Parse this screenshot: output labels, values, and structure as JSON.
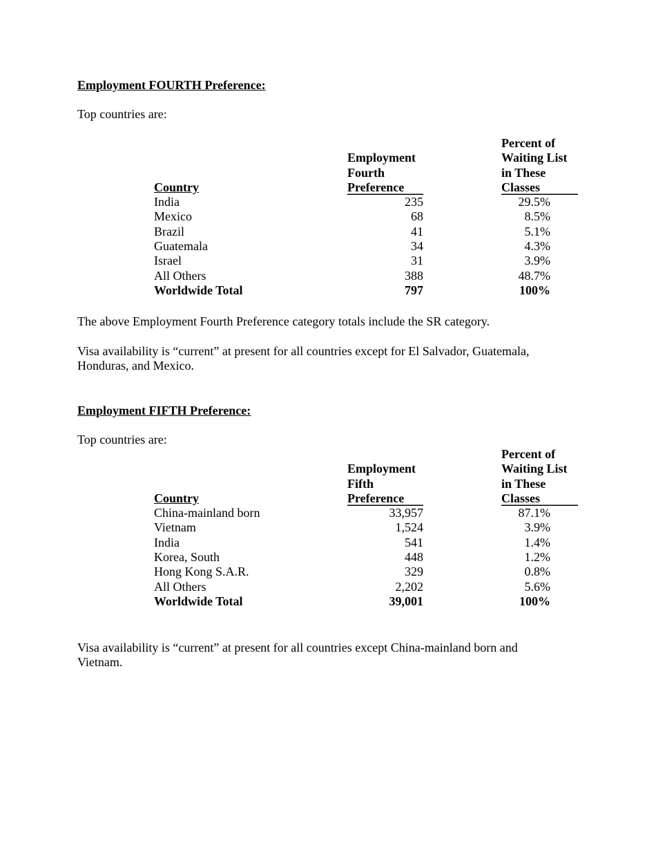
{
  "fourth": {
    "heading": "Employment FOURTH Preference:",
    "intro": "Top countries are:",
    "columns": {
      "country": "Country",
      "pref": [
        "Employment",
        "Fourth",
        "Preference"
      ],
      "percent": [
        "Percent of",
        "Waiting List",
        "in These",
        "Classes"
      ]
    },
    "rows": [
      {
        "country": "India",
        "count": "235",
        "percent": "29.5%"
      },
      {
        "country": "Mexico",
        "count": "68",
        "percent": "8.5%"
      },
      {
        "country": "Brazil",
        "count": "41",
        "percent": "5.1%"
      },
      {
        "country": "Guatemala",
        "count": "34",
        "percent": "4.3%"
      },
      {
        "country": "Israel",
        "count": "31",
        "percent": "3.9%"
      },
      {
        "country": "All Others",
        "count": "388",
        "percent": "48.7%"
      }
    ],
    "total": {
      "country": "Worldwide Total",
      "count": "797",
      "percent": "100%"
    },
    "note1": "The above Employment Fourth Preference category totals include the SR category.",
    "note2": "Visa availability is “current” at present for all countries except for El Salvador, Guatemala, Honduras, and Mexico."
  },
  "fifth": {
    "heading": "Employment FIFTH Preference:",
    "intro": "Top countries are:",
    "columns": {
      "country": "Country",
      "pref": [
        "Employment",
        "Fifth",
        "Preference"
      ],
      "percent": [
        "Percent of",
        "Waiting List",
        "in These",
        "Classes"
      ]
    },
    "rows": [
      {
        "country": "China-mainland born",
        "count": "33,957",
        "percent": "87.1%"
      },
      {
        "country": "Vietnam",
        "count": "1,524",
        "percent": "3.9%"
      },
      {
        "country": "India",
        "count": "541",
        "percent": "1.4%"
      },
      {
        "country": "Korea, South",
        "count": "448",
        "percent": "1.2%"
      },
      {
        "country": "Hong Kong S.A.R.",
        "count": "329",
        "percent": "0.8%"
      },
      {
        "country": "All Others",
        "count": "2,202",
        "percent": "5.6%"
      }
    ],
    "total": {
      "country": "Worldwide Total",
      "count": "39,001",
      "percent": "100%"
    },
    "note2": "Visa availability is “current” at present for all countries except China-mainland born and Vietnam."
  }
}
